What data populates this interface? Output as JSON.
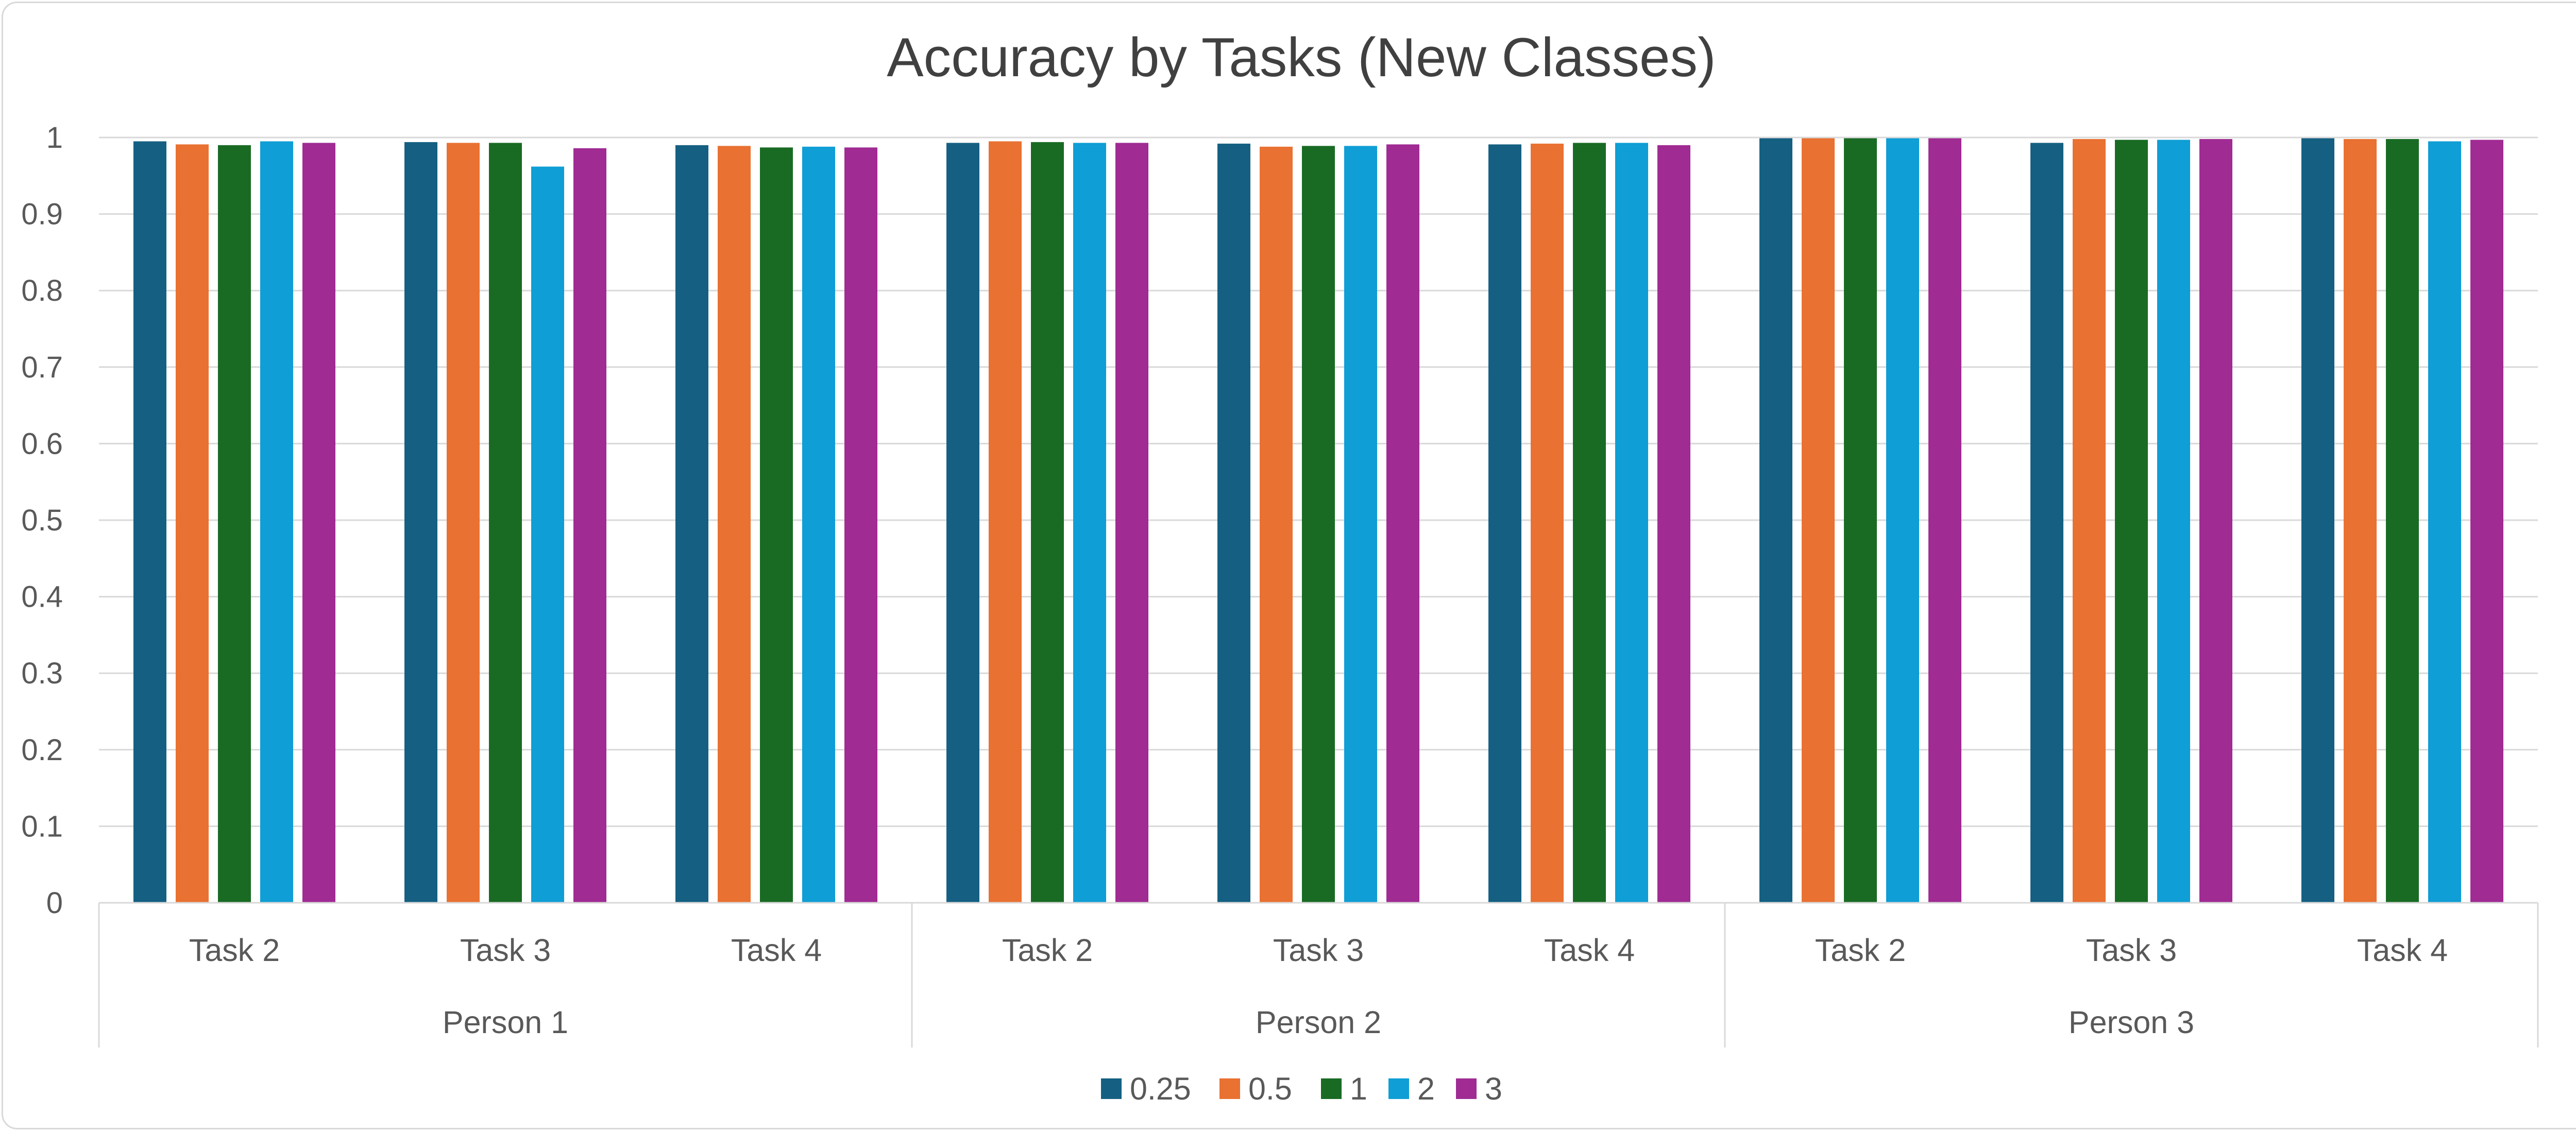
{
  "chart_data": {
    "type": "bar",
    "title": "Accuracy by Tasks (New Classes)",
    "xlabel": "",
    "ylabel": "",
    "ylim": [
      0,
      1
    ],
    "yticks": [
      "0",
      "0.1",
      "0.2",
      "0.3",
      "0.4",
      "0.5",
      "0.6",
      "0.7",
      "0.8",
      "0.9",
      "1"
    ],
    "grid": true,
    "legend_position": "bottom",
    "groups": [
      {
        "label": "Person 1",
        "categories": [
          "Task 2",
          "Task 3",
          "Task 4"
        ]
      },
      {
        "label": "Person 2",
        "categories": [
          "Task 2",
          "Task 3",
          "Task 4"
        ]
      },
      {
        "label": "Person 3",
        "categories": [
          "Task 2",
          "Task 3",
          "Task 4"
        ]
      }
    ],
    "categories": [
      "Task 2",
      "Task 3",
      "Task 4",
      "Task 2",
      "Task 3",
      "Task 4",
      "Task 2",
      "Task 3",
      "Task 4"
    ],
    "series": [
      {
        "name": "0.25",
        "color": "#156082",
        "values": [
          0.995,
          0.994,
          0.99,
          0.993,
          0.992,
          0.991,
          0.999,
          0.993,
          0.999
        ]
      },
      {
        "name": "0.5",
        "color": "#e97132",
        "values": [
          0.991,
          0.993,
          0.989,
          0.995,
          0.988,
          0.992,
          0.999,
          0.998,
          0.998
        ]
      },
      {
        "name": "1",
        "color": "#196b24",
        "values": [
          0.99,
          0.993,
          0.987,
          0.994,
          0.989,
          0.993,
          0.999,
          0.997,
          0.998
        ]
      },
      {
        "name": "2",
        "color": "#0f9ed5",
        "values": [
          0.995,
          0.962,
          0.988,
          0.993,
          0.989,
          0.993,
          0.999,
          0.997,
          0.995
        ]
      },
      {
        "name": "3",
        "color": "#a02b93",
        "values": [
          0.993,
          0.986,
          0.987,
          0.993,
          0.991,
          0.99,
          0.999,
          0.998,
          0.997
        ]
      }
    ]
  }
}
